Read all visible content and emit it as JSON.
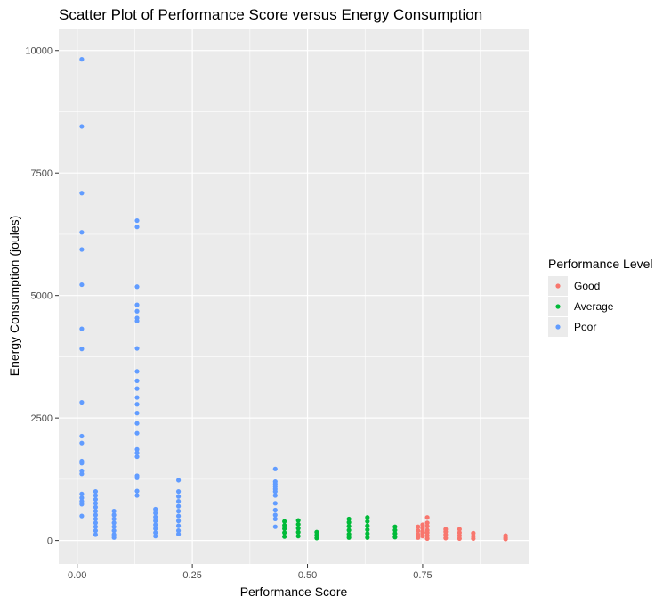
{
  "chart_data": {
    "type": "scatter",
    "title": "Scatter Plot of Performance Score versus Energy Consumption",
    "xlabel": "Performance Score",
    "ylabel": "Energy Consumption (joules)",
    "xlim": [
      -0.04,
      0.98
    ],
    "ylim": [
      -480,
      10450
    ],
    "x_ticks": [
      0.0,
      0.25,
      0.5,
      0.75
    ],
    "x_tick_labels": [
      "0.00",
      "0.25",
      "0.50",
      "0.75"
    ],
    "y_ticks": [
      0,
      2500,
      5000,
      7500,
      10000
    ],
    "y_tick_labels": [
      "0",
      "2500",
      "5000",
      "7500",
      "10000"
    ],
    "grid": true,
    "legend": {
      "title": "Performance Level",
      "position": "right"
    },
    "series": [
      {
        "name": "Good",
        "color": "#F8766D",
        "points": [
          [
            0.74,
            120
          ],
          [
            0.74,
            200
          ],
          [
            0.74,
            280
          ],
          [
            0.74,
            60
          ],
          [
            0.75,
            150
          ],
          [
            0.75,
            250
          ],
          [
            0.75,
            320
          ],
          [
            0.75,
            90
          ],
          [
            0.75,
            180
          ],
          [
            0.76,
            100
          ],
          [
            0.76,
            210
          ],
          [
            0.76,
            290
          ],
          [
            0.76,
            360
          ],
          [
            0.76,
            470
          ],
          [
            0.76,
            40
          ],
          [
            0.76,
            160
          ],
          [
            0.8,
            50
          ],
          [
            0.8,
            120
          ],
          [
            0.8,
            180
          ],
          [
            0.8,
            230
          ],
          [
            0.83,
            40
          ],
          [
            0.83,
            100
          ],
          [
            0.83,
            160
          ],
          [
            0.83,
            230
          ],
          [
            0.86,
            40
          ],
          [
            0.86,
            90
          ],
          [
            0.86,
            150
          ],
          [
            0.93,
            30
          ],
          [
            0.93,
            60
          ],
          [
            0.93,
            100
          ]
        ]
      },
      {
        "name": "Average",
        "color": "#00BA38",
        "points": [
          [
            0.45,
            80
          ],
          [
            0.45,
            160
          ],
          [
            0.45,
            240
          ],
          [
            0.45,
            310
          ],
          [
            0.45,
            390
          ],
          [
            0.48,
            90
          ],
          [
            0.48,
            170
          ],
          [
            0.48,
            250
          ],
          [
            0.48,
            330
          ],
          [
            0.48,
            410
          ],
          [
            0.52,
            50
          ],
          [
            0.52,
            110
          ],
          [
            0.52,
            170
          ],
          [
            0.59,
            60
          ],
          [
            0.59,
            130
          ],
          [
            0.59,
            210
          ],
          [
            0.59,
            290
          ],
          [
            0.59,
            370
          ],
          [
            0.59,
            440
          ],
          [
            0.63,
            60
          ],
          [
            0.63,
            140
          ],
          [
            0.63,
            220
          ],
          [
            0.63,
            300
          ],
          [
            0.63,
            390
          ],
          [
            0.63,
            470
          ],
          [
            0.69,
            70
          ],
          [
            0.69,
            140
          ],
          [
            0.69,
            210
          ],
          [
            0.69,
            280
          ]
        ]
      },
      {
        "name": "Poor",
        "color": "#619CFF",
        "points": [
          [
            0.01,
            9820
          ],
          [
            0.01,
            8450
          ],
          [
            0.01,
            7090
          ],
          [
            0.01,
            6290
          ],
          [
            0.01,
            5940
          ],
          [
            0.01,
            5220
          ],
          [
            0.01,
            4320
          ],
          [
            0.01,
            3910
          ],
          [
            0.01,
            2820
          ],
          [
            0.01,
            2130
          ],
          [
            0.01,
            1990
          ],
          [
            0.01,
            1620
          ],
          [
            0.01,
            1580
          ],
          [
            0.01,
            1420
          ],
          [
            0.01,
            1360
          ],
          [
            0.01,
            950
          ],
          [
            0.01,
            870
          ],
          [
            0.01,
            800
          ],
          [
            0.01,
            740
          ],
          [
            0.01,
            500
          ],
          [
            0.04,
            1000
          ],
          [
            0.04,
            920
          ],
          [
            0.04,
            840
          ],
          [
            0.04,
            760
          ],
          [
            0.04,
            680
          ],
          [
            0.04,
            600
          ],
          [
            0.04,
            520
          ],
          [
            0.04,
            440
          ],
          [
            0.04,
            360
          ],
          [
            0.04,
            280
          ],
          [
            0.04,
            200
          ],
          [
            0.04,
            120
          ],
          [
            0.08,
            600
          ],
          [
            0.08,
            520
          ],
          [
            0.08,
            440
          ],
          [
            0.08,
            360
          ],
          [
            0.08,
            280
          ],
          [
            0.08,
            200
          ],
          [
            0.08,
            120
          ],
          [
            0.08,
            60
          ],
          [
            0.13,
            6530
          ],
          [
            0.13,
            6400
          ],
          [
            0.13,
            5180
          ],
          [
            0.13,
            4810
          ],
          [
            0.13,
            4680
          ],
          [
            0.13,
            4540
          ],
          [
            0.13,
            4480
          ],
          [
            0.13,
            3920
          ],
          [
            0.13,
            3450
          ],
          [
            0.13,
            3260
          ],
          [
            0.13,
            3100
          ],
          [
            0.13,
            2920
          ],
          [
            0.13,
            2780
          ],
          [
            0.13,
            2600
          ],
          [
            0.13,
            2390
          ],
          [
            0.13,
            2190
          ],
          [
            0.13,
            1860
          ],
          [
            0.13,
            1790
          ],
          [
            0.13,
            1710
          ],
          [
            0.13,
            1320
          ],
          [
            0.13,
            1280
          ],
          [
            0.13,
            1010
          ],
          [
            0.13,
            920
          ],
          [
            0.17,
            640
          ],
          [
            0.17,
            560
          ],
          [
            0.17,
            480
          ],
          [
            0.17,
            400
          ],
          [
            0.17,
            320
          ],
          [
            0.17,
            240
          ],
          [
            0.17,
            160
          ],
          [
            0.17,
            90
          ],
          [
            0.22,
            1230
          ],
          [
            0.22,
            1000
          ],
          [
            0.22,
            900
          ],
          [
            0.22,
            800
          ],
          [
            0.22,
            700
          ],
          [
            0.22,
            600
          ],
          [
            0.22,
            500
          ],
          [
            0.22,
            400
          ],
          [
            0.22,
            300
          ],
          [
            0.22,
            200
          ],
          [
            0.22,
            130
          ],
          [
            0.43,
            1460
          ],
          [
            0.43,
            1200
          ],
          [
            0.43,
            1150
          ],
          [
            0.43,
            1100
          ],
          [
            0.43,
            1050
          ],
          [
            0.43,
            1000
          ],
          [
            0.43,
            920
          ],
          [
            0.43,
            760
          ],
          [
            0.43,
            620
          ],
          [
            0.43,
            520
          ],
          [
            0.43,
            440
          ],
          [
            0.43,
            280
          ]
        ]
      }
    ]
  }
}
